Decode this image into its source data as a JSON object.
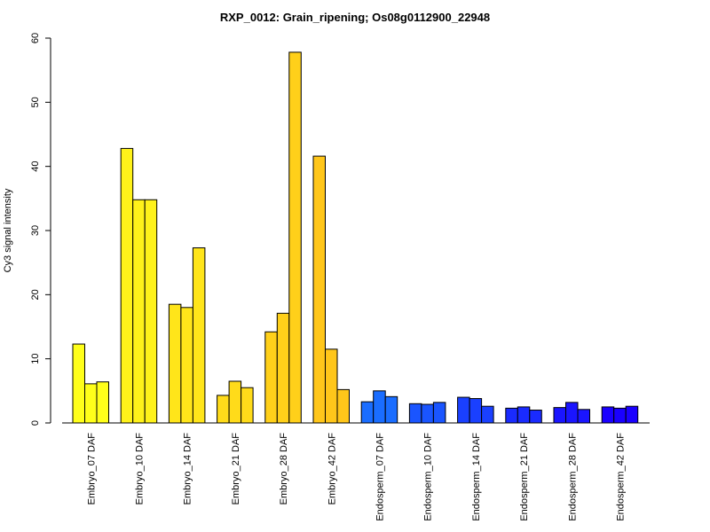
{
  "chart_data": {
    "type": "bar",
    "title": "RXP_0012: Grain_ripening; Os08g0112900_22948",
    "xlabel": "",
    "ylabel": "Cy3 signal intensity",
    "ylim": [
      0,
      60
    ],
    "yticks": [
      0,
      10,
      20,
      30,
      40,
      50,
      60
    ],
    "grid": false,
    "categories": [
      "Embryo_07 DAF",
      "Embryo_10 DAF",
      "Embryo_14 DAF",
      "Embryo_21 DAF",
      "Embryo_28 DAF",
      "Embryo_42 DAF",
      "Endosperm_07 DAF",
      "Endosperm_10 DAF",
      "Endosperm_14 DAF",
      "Endosperm_21 DAF",
      "Endosperm_28 DAF",
      "Endosperm_42 DAF"
    ],
    "group_colors": [
      "#ffff1a",
      "#fff21a",
      "#ffe51a",
      "#ffdb1a",
      "#ffd01a",
      "#ffc61a",
      "#1a6dff",
      "#1a55ff",
      "#1a40ff",
      "#1a2bff",
      "#1a15ff",
      "#1a00ff"
    ],
    "replicate_values": [
      [
        12.3,
        6.1,
        6.4
      ],
      [
        42.8,
        34.8,
        34.8
      ],
      [
        18.5,
        18.0,
        27.3
      ],
      [
        4.3,
        6.5,
        5.5
      ],
      [
        14.2,
        17.1,
        57.8
      ],
      [
        41.6,
        11.5,
        5.2
      ],
      [
        3.3,
        5.0,
        4.1
      ],
      [
        3.0,
        2.9,
        3.2
      ],
      [
        4.0,
        3.8,
        2.6
      ],
      [
        2.3,
        2.5,
        2.0
      ],
      [
        2.4,
        3.2,
        2.1
      ],
      [
        2.5,
        2.3,
        2.6
      ]
    ]
  }
}
